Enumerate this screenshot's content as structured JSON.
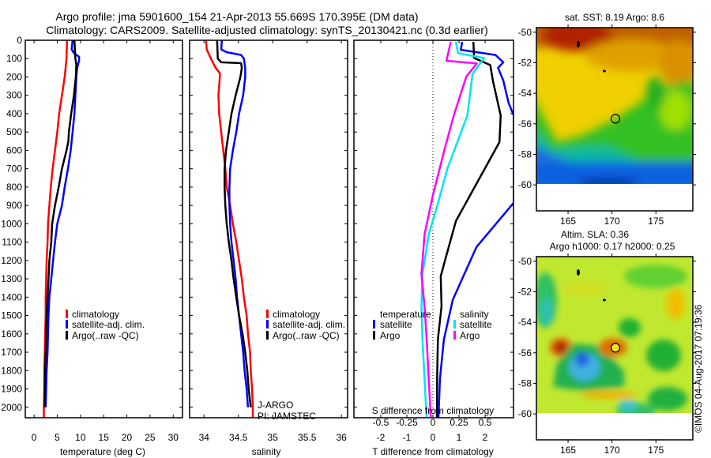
{
  "header": {
    "title_line1": "Argo profile: jma 5901600_154 21-Apr-2013 55.669S 170.395E (DM data)",
    "title_line2": "Climatology: CARS2009. Satellite-adjusted climatology: synTS_20130421.nc (0.3d earlier)"
  },
  "colors": {
    "climatology": "#ff0000",
    "satellite": "#0000ff",
    "argo": "#000000",
    "s_satellite": "#00e5ee",
    "s_argo": "#ff00ff"
  },
  "depth_ticks": [
    0,
    100,
    200,
    300,
    400,
    500,
    600,
    700,
    800,
    900,
    1000,
    1100,
    1200,
    1300,
    1400,
    1500,
    1600,
    1700,
    1800,
    1900,
    2000
  ],
  "chart_data": [
    {
      "type": "line",
      "name": "temperature-profile",
      "xlabel": "temperature (deg C)",
      "ylabel": "depth",
      "xlim": [
        -1.9,
        32
      ],
      "ylim": [
        2057,
        0
      ],
      "xticks": [
        "0",
        "5",
        "10",
        "15",
        "20",
        "25",
        "30"
      ],
      "xtick_values": [
        0,
        5,
        10,
        15,
        20,
        25,
        30
      ],
      "legend": [
        "climatology",
        "satellite-adj. clim.",
        "Argo(..raw -QC)"
      ],
      "series": [
        {
          "name": "climatology",
          "color": "#ff0000",
          "depth": [
            0,
            100,
            200,
            300,
            400,
            500,
            600,
            700,
            800,
            900,
            1000,
            1100,
            1200,
            1300,
            1400,
            1500,
            1600,
            1700,
            1800,
            1900,
            2000,
            2057
          ],
          "values": [
            7.1,
            7.0,
            6.6,
            6.0,
            5.4,
            5.0,
            4.5,
            4.0,
            3.6,
            3.3,
            3.0,
            2.9,
            2.7,
            2.6,
            2.5,
            2.5,
            2.4,
            2.3,
            2.2,
            2.2,
            2.1,
            2.1
          ]
        },
        {
          "name": "satellite-adj. clim.",
          "color": "#0000ff",
          "depth": [
            0,
            50,
            70,
            90,
            110,
            150,
            200,
            300,
            400,
            500,
            600,
            700,
            800,
            900,
            1000,
            1100,
            1200,
            1300,
            1400,
            1500,
            1600,
            1700,
            1800,
            1900,
            2000
          ],
          "values": [
            8.3,
            8.1,
            8.6,
            9.7,
            9.7,
            9.3,
            9.1,
            8.9,
            8.7,
            8.3,
            7.9,
            7.3,
            6.6,
            6.0,
            5.0,
            4.5,
            4.1,
            3.7,
            3.3,
            3.1,
            3.0,
            2.9,
            2.7,
            2.6,
            2.5
          ]
        },
        {
          "name": "Argo(..raw -QC)",
          "color": "#000000",
          "depth": [
            0,
            100,
            130,
            200,
            300,
            400,
            500,
            550,
            600,
            700,
            800,
            900,
            1000,
            1100,
            1200,
            1300,
            1400,
            1500,
            1600,
            1700,
            1800,
            1900,
            2000
          ],
          "values": [
            8.7,
            8.9,
            9.1,
            9.0,
            8.6,
            8.0,
            7.5,
            7.4,
            7.0,
            6.0,
            5.3,
            4.5,
            3.9,
            3.7,
            3.3,
            3.1,
            2.9,
            2.7,
            2.6,
            2.5,
            2.4,
            2.3,
            2.3
          ]
        }
      ]
    },
    {
      "type": "line",
      "name": "salinity-profile",
      "xlabel": "salinity",
      "xlim": [
        33.79,
        36.09
      ],
      "ylim": [
        2057,
        0
      ],
      "xticks": [
        "34",
        "34.5",
        "35",
        "35.5",
        "36"
      ],
      "xtick_values": [
        34,
        34.5,
        35,
        35.5,
        36
      ],
      "legend": [
        "climatology",
        "satellite-adj. clim.",
        "Argo(..raw -QC)"
      ],
      "annotation": [
        "J-ARGO",
        "PI: JAMSTEC"
      ],
      "series": [
        {
          "name": "climatology",
          "color": "#ff0000",
          "depth": [
            0,
            50,
            100,
            150,
            180,
            200,
            300,
            400,
            500,
            600,
            700,
            800,
            900,
            1000,
            1100,
            1200,
            1300,
            1400,
            1500,
            1600,
            1700,
            1800,
            1900,
            2000,
            2057
          ],
          "values": [
            34.03,
            34.04,
            34.1,
            34.17,
            34.23,
            34.23,
            34.21,
            34.22,
            34.25,
            34.28,
            34.31,
            34.33,
            34.38,
            34.42,
            34.47,
            34.51,
            34.55,
            34.58,
            34.62,
            34.64,
            34.67,
            34.68,
            34.7,
            34.71,
            34.71
          ]
        },
        {
          "name": "satellite-adj. clim.",
          "color": "#0000ff",
          "depth": [
            0,
            50,
            65,
            80,
            100,
            150,
            200,
            300,
            400,
            500,
            600,
            700,
            800,
            900,
            1000,
            1100,
            1200,
            1300,
            1400,
            1500,
            1600,
            1700,
            1800,
            1900,
            2000
          ],
          "values": [
            34.26,
            34.25,
            34.33,
            34.54,
            34.58,
            34.6,
            34.6,
            34.57,
            34.51,
            34.47,
            34.42,
            34.38,
            34.37,
            34.37,
            34.38,
            34.4,
            34.43,
            34.46,
            34.48,
            34.51,
            34.54,
            34.57,
            34.59,
            34.62,
            34.64
          ]
        },
        {
          "name": "Argo(..raw -QC)",
          "color": "#000000",
          "depth": [
            0,
            100,
            120,
            125,
            150,
            200,
            300,
            400,
            500,
            600,
            700,
            800,
            900,
            1000,
            1100,
            1200,
            1300,
            1400,
            1500,
            1600,
            1700,
            1800,
            1900,
            2000
          ],
          "values": [
            34.19,
            34.2,
            34.25,
            34.54,
            34.55,
            34.53,
            34.46,
            34.4,
            34.36,
            34.32,
            34.3,
            34.3,
            34.31,
            34.33,
            34.36,
            34.4,
            34.43,
            34.47,
            34.51,
            34.56,
            34.6,
            34.63,
            34.65,
            34.68
          ]
        }
      ]
    },
    {
      "type": "line",
      "name": "difference-profile",
      "xlabel": "T difference from climatology",
      "x2label": "S difference from climatology",
      "xlim": [
        -3.03,
        3.09
      ],
      "x2lim": [
        -0.7575,
        0.7725
      ],
      "ylim": [
        2057,
        0
      ],
      "xticks": [
        "-2",
        "-1",
        "0",
        "1",
        "2"
      ],
      "xtick_values": [
        -2,
        -1,
        0,
        1,
        2
      ],
      "x2ticks": [
        "-0.5",
        "-0.25",
        "0",
        "0.25",
        "0.5"
      ],
      "x2tick_values": [
        -0.5,
        -0.25,
        0,
        0.25,
        0.5
      ],
      "legend_headers": [
        "temperature",
        "salinity"
      ],
      "legend": [
        "satellite",
        "Argo",
        "satellite",
        "Argo"
      ],
      "series": [
        {
          "name": "T satellite",
          "axis": "T",
          "color": "#0000ff",
          "depth": [
            9,
            52,
            80,
            120,
            150,
            220,
            340,
            410,
            885,
            1127,
            1415,
            1630,
            1845,
            2068
          ],
          "values": [
            1.12,
            1.07,
            2.4,
            2.7,
            2.5,
            2.7,
            2.9,
            3.1,
            3.1,
            1.67,
            0.76,
            0.42,
            0.27,
            0.21
          ]
        },
        {
          "name": "T Argo",
          "axis": "T",
          "color": "#000000",
          "depth": [
            9,
            97,
            135,
            220,
            410,
            555,
            697,
            885,
            985,
            1170,
            1286,
            1450,
            1630,
            1845,
            2068
          ],
          "values": [
            1.55,
            1.58,
            2.2,
            2.3,
            2.6,
            2.55,
            2.0,
            1.27,
            0.88,
            0.52,
            0.3,
            0.33,
            0.19,
            0.16,
            0.15
          ]
        },
        {
          "name": "S satellite",
          "axis": "S",
          "color": "#00e5ee",
          "depth": [
            9,
            70,
            97,
            183,
            410,
            697,
            885,
            1058,
            1273,
            1450,
            1630,
            1845,
            2068
          ],
          "values": [
            0.22,
            0.24,
            0.49,
            0.38,
            0.33,
            0.14,
            0.05,
            -0.04,
            -0.1,
            -0.11,
            -0.1,
            -0.08,
            -0.06
          ]
        },
        {
          "name": "S Argo",
          "axis": "S",
          "color": "#ff00ff",
          "depth": [
            9,
            112,
            126,
            198,
            410,
            598,
            843,
            1058,
            1273,
            1450,
            1630,
            1845,
            2068
          ],
          "values": [
            0.17,
            0.13,
            0.42,
            0.32,
            0.2,
            0.11,
            0.0,
            -0.08,
            -0.11,
            -0.08,
            -0.06,
            -0.04,
            -0.02
          ]
        }
      ]
    },
    {
      "type": "heatmap",
      "name": "sst-map",
      "title": "sat. SST: 8.19 Argo: 8.6",
      "lonlim": [
        161.4,
        179.2
      ],
      "latlim": [
        -61.7,
        -49.7
      ],
      "xticks": [
        "165",
        "170",
        "175"
      ],
      "xtick_values": [
        165,
        170,
        175
      ],
      "yticks": [
        "-50",
        "-52",
        "-54",
        "-56",
        "-58",
        "-60"
      ],
      "ytick_values": [
        -50,
        -52,
        -54,
        -56,
        -58,
        -60
      ],
      "marker": {
        "lon": 170.395,
        "lat": -55.669
      }
    },
    {
      "type": "heatmap",
      "name": "sla-map",
      "title": "Altim. SLA: 0.36",
      "subtitle": "Argo h1000: 0.17 h2000: 0.25",
      "lonlim": [
        161.4,
        179.2
      ],
      "latlim": [
        -61.7,
        -49.7
      ],
      "xticks": [
        "165",
        "170",
        "175"
      ],
      "xtick_values": [
        165,
        170,
        175
      ],
      "yticks": [
        "-50",
        "-52",
        "-54",
        "-56",
        "-58",
        "-60"
      ],
      "ytick_values": [
        -50,
        -52,
        -54,
        -56,
        -58,
        -60
      ],
      "marker": {
        "lon": 170.395,
        "lat": -55.669
      }
    }
  ],
  "footer": {
    "copyright": "©IMOS 04-Aug-2017 07:19:36"
  }
}
